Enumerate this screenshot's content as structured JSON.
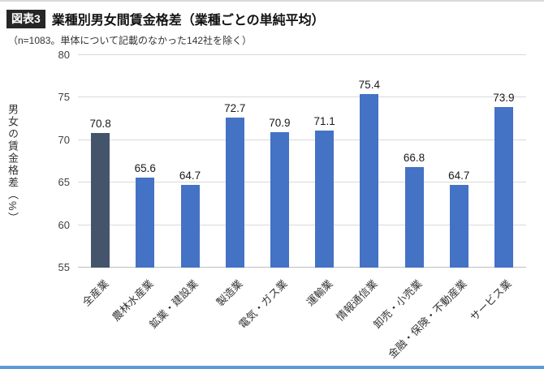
{
  "figure": {
    "badge": "図表3",
    "title": "業種別男女間賃金格差（業種ごとの単純平均）",
    "subtitle": "（n=1083。単体について記載のなかった142社を除く）"
  },
  "chart_data": {
    "type": "bar",
    "title": "業種別男女間賃金格差（業種ごとの単純平均）",
    "xlabel": "",
    "ylabel": "男女の賃金格差（%）",
    "ylim": [
      55,
      80
    ],
    "yticks": [
      55,
      60,
      65,
      70,
      75,
      80
    ],
    "grid": true,
    "legend": false,
    "categories": [
      "全産業",
      "農林水産業",
      "鉱業・建設業",
      "製造業",
      "電気・ガス業",
      "運輸業",
      "情報通信業",
      "卸売・小売業",
      "金融・保険・不動産業",
      "サービス業"
    ],
    "values": [
      70.8,
      65.6,
      64.7,
      72.7,
      70.9,
      71.1,
      75.4,
      66.8,
      64.7,
      73.9
    ],
    "bar_color_default": "#4472C4",
    "bar_color_first": "#44546A"
  },
  "colors": {
    "top_rule": "#d9d9d9",
    "bottom_rule": "#5b9bd5",
    "gridline": "#d9d9d9"
  }
}
